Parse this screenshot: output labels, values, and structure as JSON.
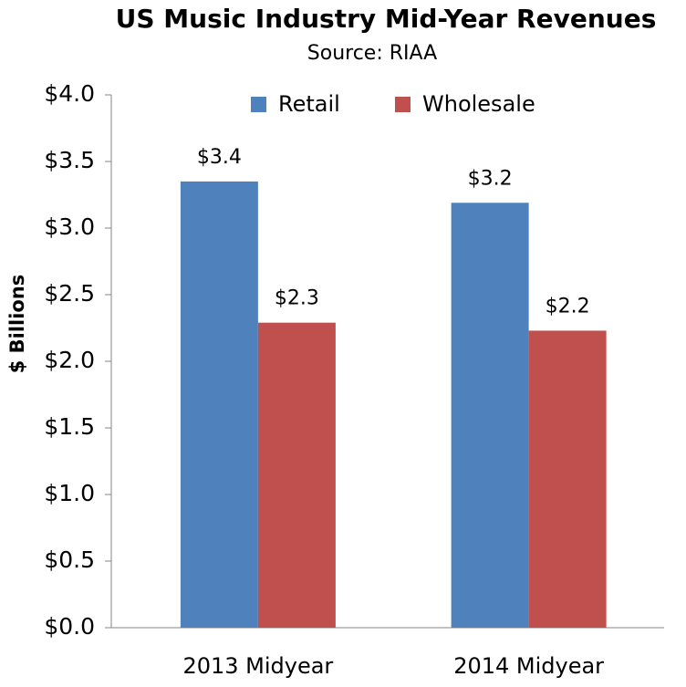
{
  "chart_data": {
    "type": "bar",
    "title": "US Music Industry Mid-Year Revenues",
    "subtitle": "Source: RIAA",
    "y_label": "$ Billions",
    "categories": [
      "2013 Midyear",
      "2014 Midyear"
    ],
    "series": [
      {
        "name": "Retail",
        "color": "#4f81bd",
        "values": [
          3.35,
          3.19
        ],
        "value_labels": [
          "$3.4",
          "$3.2"
        ]
      },
      {
        "name": "Wholesale",
        "color": "#c0504d",
        "values": [
          2.29,
          2.23
        ],
        "value_labels": [
          "$2.3",
          "$2.2"
        ]
      }
    ],
    "ylim": [
      0,
      4
    ],
    "yticks": [
      {
        "value": 0,
        "label": "$0.0"
      },
      {
        "value": 0.5,
        "label": "$0.5"
      },
      {
        "value": 1,
        "label": "$1.0"
      },
      {
        "value": 1.5,
        "label": "$1.5"
      },
      {
        "value": 2,
        "label": "$2.0"
      },
      {
        "value": 2.5,
        "label": "$2.5"
      },
      {
        "value": 3,
        "label": "$3.0"
      },
      {
        "value": 3.5,
        "label": "$3.5"
      },
      {
        "value": 4,
        "label": "$4.0"
      }
    ],
    "grid": false,
    "legend": "top"
  }
}
